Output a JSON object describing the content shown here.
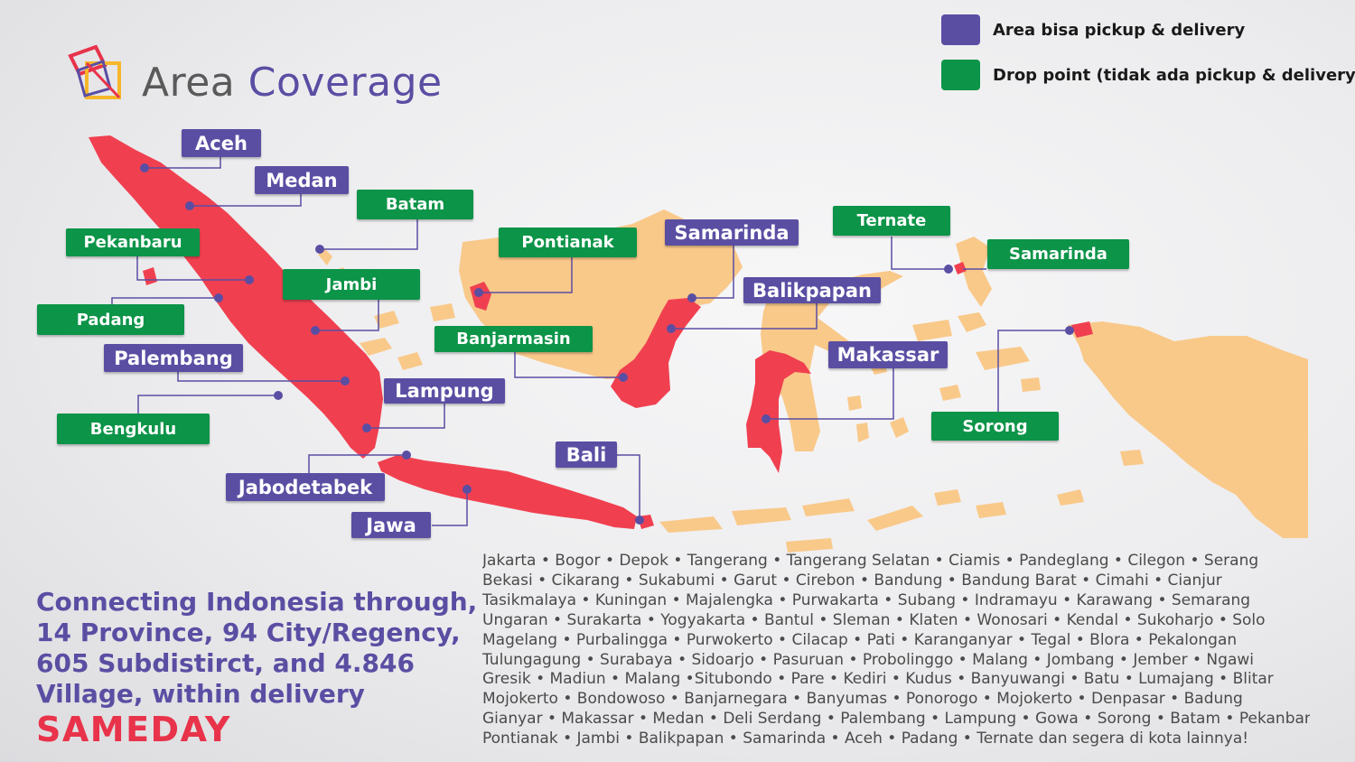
{
  "header": {
    "title_part1": "Area",
    "title_part2": "Coverage"
  },
  "legend": {
    "purple_label": "Area bisa pickup & delivery",
    "green_label": "Drop point (tidak ada pickup & delivery)",
    "purple_color": "#5a4ea3",
    "green_color": "#0c9448"
  },
  "colors": {
    "covered_area": "#f04050",
    "other_islands": "#f9c98a",
    "marker": "#5a4ea3"
  },
  "labels": {
    "aceh": "Aceh",
    "medan": "Medan",
    "batam": "Batam",
    "pekanbaru": "Pekanbaru",
    "jambi": "Jambi",
    "padang": "Padang",
    "palembang": "Palembang",
    "bengkulu": "Bengkulu",
    "lampung": "Lampung",
    "jabodetabek": "Jabodetabek",
    "jawa": "Jawa",
    "bali": "Bali",
    "pontianak": "Pontianak",
    "banjarmasin": "Banjarmasin",
    "samarinda_kal": "Samarinda",
    "balikpapan": "Balikpapan",
    "makassar": "Makassar",
    "ternate": "Ternate",
    "samarinda_malut": "Samarinda",
    "sorong": "Sorong"
  },
  "tagline": {
    "line1": "Connecting Indonesia through,",
    "line2": "14 Province, 94 City/Regency,",
    "line3": "605 Subdistirct, and 4.846",
    "line4": "Village, within delivery",
    "highlight": "SAMEDAY"
  },
  "cities": {
    "line1": "Jakarta • Bogor • Depok • Tangerang • Tangerang Selatan • Ciamis • Pandeglang • Cilegon • Serang",
    "line2": "Bekasi • Cikarang • Sukabumi • Garut • Cirebon • Bandung • Bandung Barat • Cimahi • Cianjur",
    "line3": "Tasikmalaya • Kuningan • Majalengka • Purwakarta • Subang • Indramayu • Karawang • Semarang",
    "line4": "Ungaran • Surakarta • Yogyakarta • Bantul • Sleman • Klaten • Wonosari • Kendal • Sukoharjo • Solo",
    "line5": "Magelang • Purbalingga • Purwokerto • Cilacap • Pati • Karanganyar • Tegal • Blora • Pekalongan",
    "line6": "Tulungagung • Surabaya • Sidoarjo • Pasuruan • Probolinggo • Malang • Jombang • Jember • Ngawi",
    "line7": "Gresik • Madiun • Malang •Situbondo • Pare • Kediri • Kudus • Banyuwangi • Batu • Lumajang • Blitar",
    "line8": "Mojokerto • Bondowoso • Banjarnegara • Banyumas • Ponorogo • Mojokerto • Denpasar • Badung",
    "line9": "Gianyar • Makassar • Medan • Deli Serdang • Palembang • Lampung • Gowa • Sorong • Batam • Pekanbaru",
    "line10": "Pontianak • Jambi • Balikpapan • Samarinda • Aceh • Padang  • Ternate dan segera di kota lainnya!"
  }
}
